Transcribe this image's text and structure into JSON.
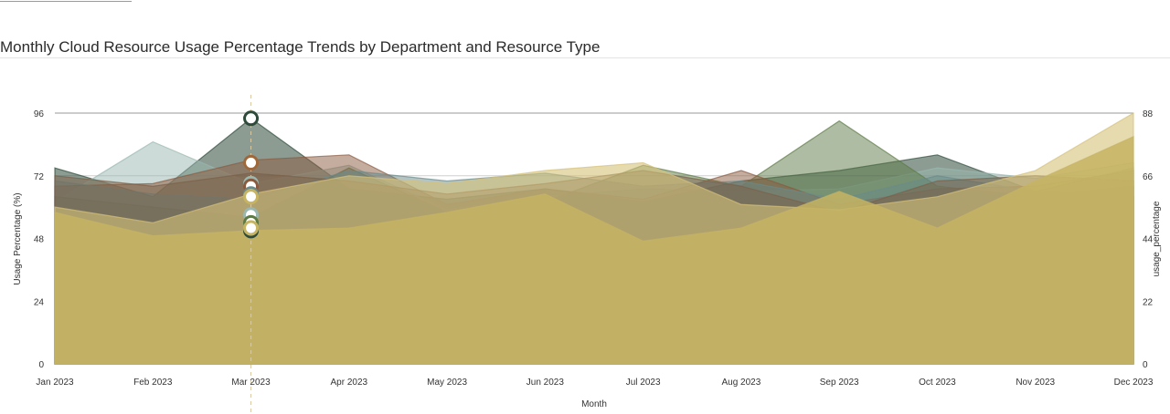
{
  "title": "Monthly Cloud Resource Usage Percentage Trends by Department and Resource Type",
  "chart_data": {
    "type": "area",
    "title": "Monthly Cloud Resource Usage Percentage Trends by Department and Resource Type",
    "xlabel": "Month",
    "ylabel": "Usage Percentage (%)",
    "y2label": "usage_percentage",
    "categories": [
      "Jan 2023",
      "Feb 2023",
      "Mar 2023",
      "Apr 2023",
      "May 2023",
      "Jun 2023",
      "Jul 2023",
      "Aug 2023",
      "Sep 2023",
      "Oct 2023",
      "Nov 2023",
      "Dec 2023"
    ],
    "ylim": [
      0,
      96
    ],
    "yticks": [
      0,
      24,
      48,
      72,
      96
    ],
    "y2ticks": [
      0,
      22,
      44,
      66,
      88
    ],
    "grid": "horizontal",
    "stacked": false,
    "highlight_category": "Mar 2023",
    "series": [
      {
        "color": "#2e4a3a",
        "opacity": 0.55,
        "values": [
          75,
          64,
          94,
          67,
          63,
          67,
          62,
          70,
          74,
          80,
          66,
          64
        ]
      },
      {
        "color": "#9ab8b0",
        "opacity": 0.5,
        "values": [
          62,
          85,
          69,
          76,
          59,
          64,
          67,
          66,
          67,
          75,
          71,
          77
        ]
      },
      {
        "color": "#5c7a46",
        "opacity": 0.5,
        "values": [
          64,
          60,
          56,
          75,
          58,
          62,
          76,
          68,
          93,
          68,
          64,
          68
        ]
      },
      {
        "color": "#8a5a3e",
        "opacity": 0.5,
        "values": [
          68,
          69,
          78,
          80,
          61,
          67,
          63,
          74,
          61,
          67,
          68,
          74
        ]
      },
      {
        "color": "#6a8a8a",
        "opacity": 0.5,
        "values": [
          70,
          65,
          63,
          74,
          70,
          73,
          68,
          70,
          63,
          72,
          66,
          75
        ]
      },
      {
        "color": "#7a6048",
        "opacity": 0.5,
        "values": [
          72,
          68,
          73,
          70,
          65,
          69,
          74,
          68,
          58,
          70,
          72,
          70
        ]
      },
      {
        "color": "#d6c27a",
        "opacity": 0.6,
        "values": [
          60,
          54,
          65,
          72,
          69,
          74,
          77,
          61,
          59,
          64,
          74,
          96
        ]
      },
      {
        "color": "#c6b463",
        "opacity": 0.85,
        "values": [
          58,
          49,
          51,
          52,
          58,
          65,
          47,
          52,
          66,
          52,
          70,
          87
        ]
      }
    ],
    "markers_at_highlight": [
      {
        "value": 94,
        "color": "#2e4a3a"
      },
      {
        "value": 77,
        "color": "#a0683a"
      },
      {
        "value": 69,
        "color": "#9ab8b0"
      },
      {
        "value": 68,
        "color": "#8a5a3e"
      },
      {
        "value": 65,
        "color": "#6a8a8a"
      },
      {
        "value": 64,
        "color": "#c6b463"
      },
      {
        "value": 57,
        "color": "#9ab8b0"
      },
      {
        "value": 54,
        "color": "#5c7a46"
      },
      {
        "value": 51,
        "color": "#2e4a3a"
      },
      {
        "value": 52,
        "color": "#c6b463"
      }
    ]
  }
}
